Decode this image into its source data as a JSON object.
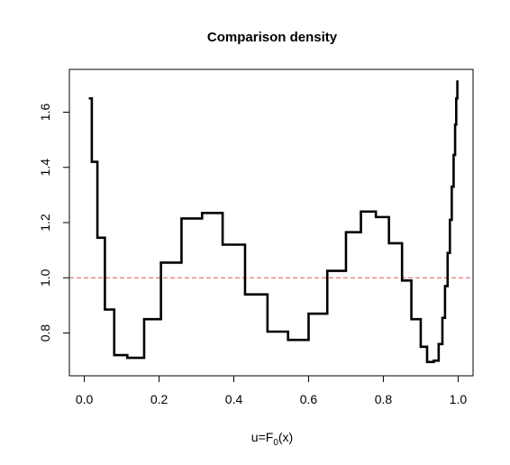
{
  "chart_data": {
    "type": "line",
    "style": "step",
    "title": "Comparison density",
    "xlabel": {
      "main": "u=F",
      "subscript": "0",
      "rest": "(x)"
    },
    "ylabel": "",
    "xlim": [
      -0.04,
      1.04
    ],
    "ylim": [
      0.645,
      1.755
    ],
    "xticks": [
      0.0,
      0.2,
      0.4,
      0.6,
      0.8,
      1.0
    ],
    "xtick_labels": [
      "0.0",
      "0.2",
      "0.4",
      "0.6",
      "0.8",
      "1.0"
    ],
    "yticks": [
      0.8,
      1.0,
      1.2,
      1.4,
      1.6
    ],
    "ytick_labels": [
      "0.8",
      "1.0",
      "1.2",
      "1.4",
      "1.6"
    ],
    "reference_line": {
      "y": 1.0,
      "color": "#d9534f",
      "style": "dashed"
    },
    "line_color": "#000000",
    "grid": false,
    "legend": "none",
    "series": [
      {
        "x": [
          0.012,
          0.02,
          0.035,
          0.055,
          0.08,
          0.115,
          0.16,
          0.205,
          0.26,
          0.315,
          0.37,
          0.43,
          0.49,
          0.545,
          0.6,
          0.65,
          0.7,
          0.74,
          0.78,
          0.815,
          0.85,
          0.875,
          0.9,
          0.917,
          0.935,
          0.948,
          0.958,
          0.965,
          0.972,
          0.978,
          0.983,
          0.988,
          0.992,
          0.995,
          0.998
        ],
        "y": [
          1.65,
          1.42,
          1.145,
          0.885,
          0.72,
          0.71,
          0.85,
          1.055,
          1.215,
          1.235,
          1.12,
          0.94,
          0.805,
          0.775,
          0.87,
          1.025,
          1.165,
          1.24,
          1.22,
          1.125,
          0.99,
          0.85,
          0.75,
          0.695,
          0.7,
          0.76,
          0.855,
          0.97,
          1.09,
          1.21,
          1.33,
          1.445,
          1.555,
          1.65,
          1.715
        ]
      }
    ]
  }
}
